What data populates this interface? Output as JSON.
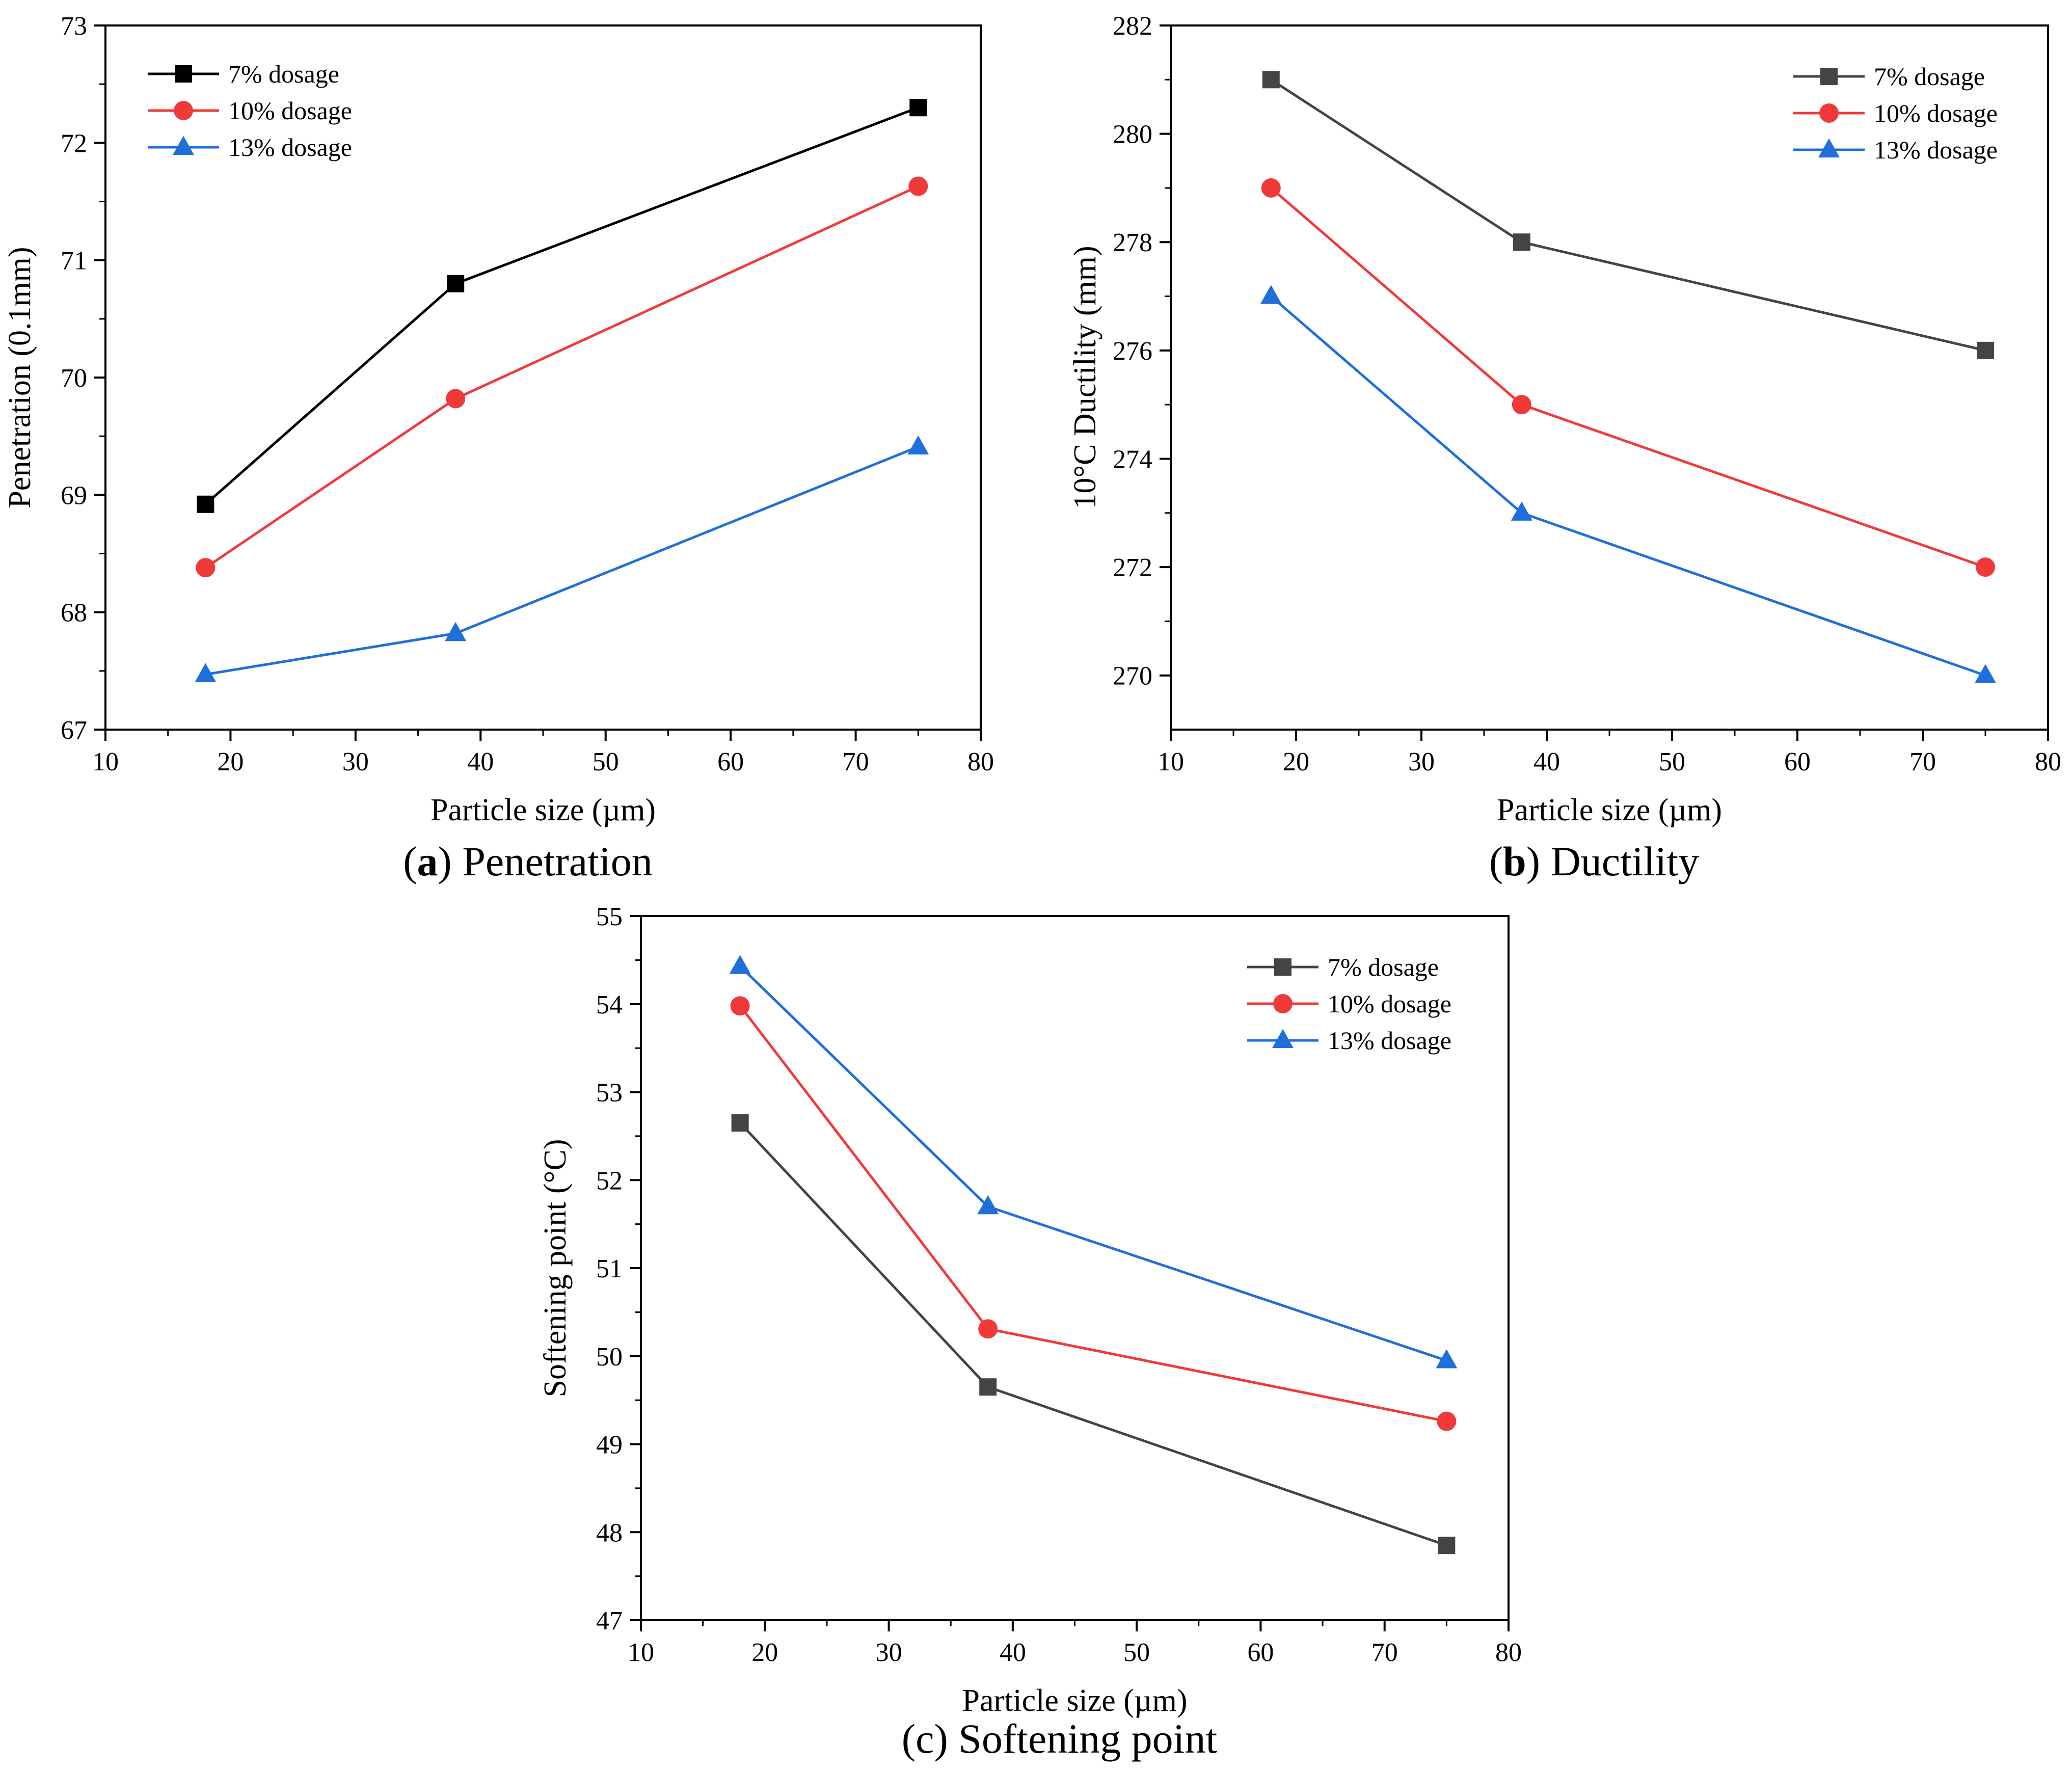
{
  "chart_data": [
    {
      "type": "line",
      "caption_letter": "a",
      "caption_text": "Penetration",
      "xlabel": "Particle size (µm)",
      "ylabel": "Penetration (0.1mm)",
      "xlim": [
        10,
        80
      ],
      "ylim": [
        67,
        73
      ],
      "xticks": [
        10,
        20,
        30,
        40,
        50,
        60,
        70,
        80
      ],
      "yticks": [
        67,
        68,
        69,
        70,
        71,
        72,
        73
      ],
      "x": [
        18,
        38,
        75
      ],
      "legend_position": "top-left",
      "series": [
        {
          "name": "7% dosage",
          "marker": "square",
          "color": "#000000",
          "values": [
            68.92,
            70.8,
            72.3
          ]
        },
        {
          "name": "10% dosage",
          "marker": "circle",
          "color": "#f03a3a",
          "values": [
            68.38,
            69.82,
            71.63
          ]
        },
        {
          "name": "13% dosage",
          "marker": "triangle",
          "color": "#1f6fdb",
          "values": [
            67.47,
            67.82,
            69.41
          ]
        }
      ]
    },
    {
      "type": "line",
      "caption_letter": "b",
      "caption_text": "Ductility",
      "xlabel": "Particle size (µm)",
      "ylabel": "10°C Ductility (mm)",
      "xlim": [
        10,
        80
      ],
      "ylim": [
        269,
        282
      ],
      "xticks": [
        10,
        20,
        30,
        40,
        50,
        60,
        70,
        80
      ],
      "yticks": [
        270,
        272,
        274,
        276,
        278,
        280,
        282
      ],
      "x": [
        18,
        38,
        75
      ],
      "legend_position": "top-right",
      "series": [
        {
          "name": "7% dosage",
          "marker": "square",
          "color": "#444444",
          "values": [
            281,
            278,
            276
          ]
        },
        {
          "name": "10% dosage",
          "marker": "circle",
          "color": "#f03a3a",
          "values": [
            279,
            275,
            272
          ]
        },
        {
          "name": "13% dosage",
          "marker": "triangle",
          "color": "#1f6fdb",
          "values": [
            277,
            273,
            270
          ]
        }
      ]
    },
    {
      "type": "line",
      "caption_letter": "c",
      "caption_text": "Softening point",
      "xlabel": "Particle size (µm)",
      "ylabel": "Softening point (°C)",
      "xlim": [
        10,
        80
      ],
      "ylim": [
        47,
        55
      ],
      "xticks": [
        10,
        20,
        30,
        40,
        50,
        60,
        70,
        80
      ],
      "yticks": [
        47,
        48,
        49,
        50,
        51,
        52,
        53,
        54,
        55
      ],
      "x": [
        18,
        38,
        75
      ],
      "legend_position": "top-right",
      "series": [
        {
          "name": "7% dosage",
          "marker": "square",
          "color": "#444444",
          "values": [
            52.65,
            49.65,
            47.85
          ]
        },
        {
          "name": "10% dosage",
          "marker": "circle",
          "color": "#f03a3a",
          "values": [
            53.98,
            50.31,
            49.26
          ]
        },
        {
          "name": "13% dosage",
          "marker": "triangle",
          "color": "#1f6fdb",
          "values": [
            54.43,
            51.7,
            49.95
          ]
        }
      ]
    }
  ]
}
